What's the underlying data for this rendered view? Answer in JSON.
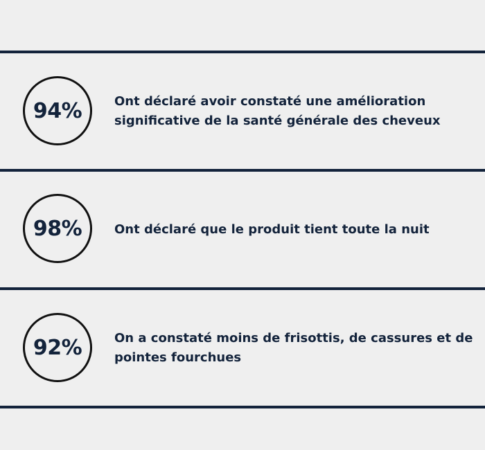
{
  "stats": [
    {
      "percent": "94%",
      "text": "Ont déclaré avoir constaté une amélioration significative de la santé générale des cheveux"
    },
    {
      "percent": "98%",
      "text": "Ont déclaré que le produit tient toute la nuit"
    },
    {
      "percent": "92%",
      "text": "On a constaté moins de frisottis, de cassures et de pointes fourchues"
    }
  ],
  "colors": {
    "background": "#efefef",
    "text": "#13233b",
    "divider": "#13233b",
    "circle_border": "#111111"
  }
}
